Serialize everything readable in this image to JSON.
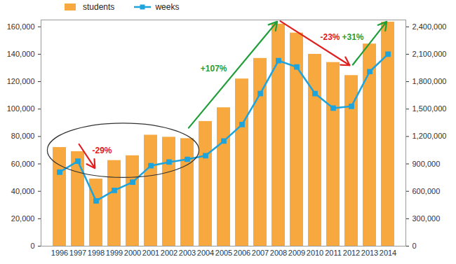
{
  "chart_data": {
    "type": "bar",
    "categories": [
      "1996",
      "1997",
      "1998",
      "1999",
      "2000",
      "2001",
      "2002",
      "2003",
      "2004",
      "2005",
      "2006",
      "2007",
      "2008",
      "2009",
      "2010",
      "2011",
      "2012",
      "2013",
      "2014"
    ],
    "series": [
      {
        "name": "students",
        "type": "bar",
        "color": "#f7a83e",
        "values": [
          72000,
          69000,
          49000,
          62500,
          66000,
          81000,
          79500,
          78500,
          91000,
          101000,
          122000,
          137000,
          162000,
          155500,
          140000,
          134000,
          124500,
          147500,
          163500
        ]
      },
      {
        "name": "weeks",
        "type": "line",
        "axis": "y2",
        "color": "#1ea4dc",
        "marker": "square",
        "values": [
          810000,
          930000,
          495000,
          610000,
          700000,
          880000,
          920000,
          950000,
          990000,
          1150000,
          1330000,
          1670000,
          2030000,
          1960000,
          1670000,
          1510000,
          1530000,
          1910000,
          2100000
        ]
      }
    ],
    "ylim": [
      0,
      165000
    ],
    "yticks": [
      0,
      {
        "value": 20000,
        "label": "20,000"
      },
      {
        "value": 40000,
        "label": "40,000"
      },
      {
        "value": 60000,
        "label": "60,000"
      },
      {
        "value": 80000,
        "label": "80,000"
      },
      {
        "value": 100000,
        "label": "100,000"
      },
      {
        "value": 120000,
        "label": "120,000"
      },
      {
        "value": 140000,
        "label": "140,000"
      },
      {
        "value": 160000,
        "label": "160,000"
      }
    ],
    "y2lim": [
      0,
      2475000
    ],
    "y2ticks": [
      0,
      {
        "value": 300000,
        "label": "300,000"
      },
      {
        "value": 600000,
        "label": "600,000"
      },
      {
        "value": 900000,
        "label": "900,000"
      },
      {
        "value": 1200000,
        "label": "1,200,000"
      },
      {
        "value": 1500000,
        "label": "1,500,000"
      },
      {
        "value": 1800000,
        "label": "1,800,000"
      },
      {
        "value": 2100000,
        "label": "2,100,000"
      },
      {
        "value": 2400000,
        "label": "2,400,000"
      }
    ],
    "grid": false,
    "legend": "top-left",
    "annotations": [
      {
        "text": "-29%",
        "from": "1997",
        "to": "1998",
        "color": "#e02020"
      },
      {
        "text": "+107%",
        "from": "2003",
        "to": "2008",
        "color": "#1f9e3a"
      },
      {
        "text": "-23%",
        "from": "2008",
        "to": "2012",
        "color": "#e02020"
      },
      {
        "text": "+31%",
        "from": "2012",
        "to": "2014",
        "color": "#1f9e3a"
      }
    ]
  }
}
